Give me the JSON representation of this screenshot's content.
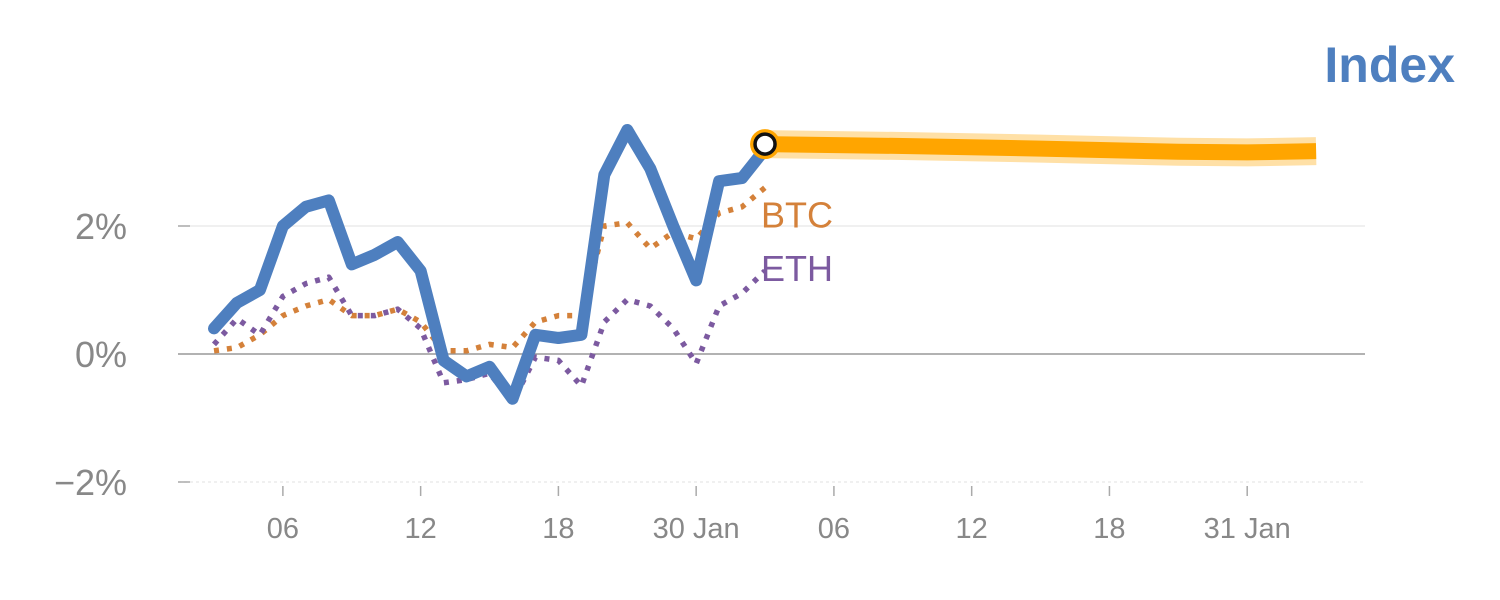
{
  "chart_data": {
    "type": "line",
    "title": "Index",
    "ylabel": "",
    "xlabel": "",
    "ylim": [
      -2,
      3.5
    ],
    "yticks": [
      {
        "value": 2,
        "label": "2%"
      },
      {
        "value": 0,
        "label": "0%"
      },
      {
        "value": -2,
        "label": "−2%"
      }
    ],
    "xticks": [
      {
        "x": 3,
        "label": "06"
      },
      {
        "x": 9,
        "label": "12"
      },
      {
        "x": 15,
        "label": "18"
      },
      {
        "x": 21,
        "label": "30 Jan"
      },
      {
        "x": 27,
        "label": "06"
      },
      {
        "x": 33,
        "label": "12"
      },
      {
        "x": 39,
        "label": "18"
      },
      {
        "x": 45,
        "label": "31 Jan"
      }
    ],
    "xlim": [
      -1.5,
      49.5
    ],
    "grid": "horizontal",
    "x": [
      0,
      1,
      2,
      3,
      4,
      5,
      6,
      7,
      8,
      9,
      10,
      11,
      12,
      13,
      14,
      15,
      16,
      17,
      18,
      19,
      20,
      21,
      22,
      23,
      24
    ],
    "series": [
      {
        "name": "",
        "color": "#4e7fbf",
        "style": "solid",
        "values": [
          0.4,
          0.8,
          1.0,
          2.0,
          2.3,
          2.4,
          1.4,
          1.55,
          1.75,
          1.3,
          -0.1,
          -0.35,
          -0.2,
          -0.7,
          0.3,
          0.25,
          0.3,
          2.8,
          3.5,
          2.9,
          2.0,
          1.15,
          2.7,
          2.75,
          3.2
        ]
      },
      {
        "name": "BTC",
        "color": "#d4813a",
        "style": "dotted",
        "values": [
          0.05,
          0.1,
          0.3,
          0.6,
          0.75,
          0.85,
          0.6,
          0.6,
          0.7,
          0.5,
          0.05,
          0.05,
          0.15,
          0.1,
          0.5,
          0.6,
          0.6,
          2.0,
          2.05,
          1.65,
          1.9,
          1.8,
          2.2,
          2.3,
          2.6
        ]
      },
      {
        "name": "ETH",
        "color": "#7c5aa0",
        "style": "dotted",
        "values": [
          0.15,
          0.55,
          0.3,
          0.9,
          1.1,
          1.2,
          0.6,
          0.6,
          0.7,
          0.4,
          -0.45,
          -0.4,
          -0.3,
          -0.75,
          -0.05,
          -0.1,
          -0.5,
          0.5,
          0.85,
          0.75,
          0.4,
          -0.15,
          0.75,
          0.95,
          1.3
        ]
      }
    ],
    "projection": {
      "color": "#ffa500",
      "x": [
        24,
        30,
        36,
        42,
        45,
        48
      ],
      "values": [
        3.28,
        3.25,
        3.21,
        3.16,
        3.15,
        3.17
      ]
    },
    "marker": {
      "x": 24,
      "value": 3.28
    }
  }
}
